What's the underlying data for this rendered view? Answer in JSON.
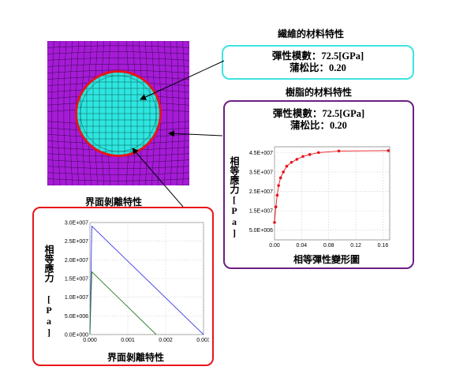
{
  "fiber": {
    "title": "繊維的材料特性",
    "modulus": "彈性模數：72.5[GPa]",
    "poisson": "蒲松比：0.20"
  },
  "resin": {
    "title": "樹脂的材料特性",
    "modulus": "彈性模數：72.5[GPa]",
    "poisson": "蒲松比：0.20"
  },
  "interface": {
    "title": "界面剝離特性"
  },
  "colors": {
    "matrix": "#a51bd6",
    "fiber": "#2ee6df",
    "interface_ring": "#e8141a",
    "fiber_box_border": "#3fe3e3",
    "resin_box_border": "#6b1f82",
    "interface_box_border": "#e8141a",
    "curve_red": "#e8141a",
    "curve_blue": "#3a3ae6",
    "curve_green": "#2a7a2a"
  },
  "chart_data": [
    {
      "type": "line",
      "xlabel": "相等彈性變形圖",
      "ylabel": "相等應力[Pa]",
      "xlim": [
        0,
        0.17
      ],
      "ylim": [
        0,
        48000000
      ],
      "x_ticks": [
        "0.00",
        "0.04",
        "0.08",
        "0.12",
        "0.16"
      ],
      "x_tick_values": [
        0,
        0.04,
        0.08,
        0.12,
        0.16
      ],
      "y_ticks": [
        "5.0E+006",
        "1.5E+007",
        "2.5E+007",
        "3.5E+007",
        "4.5E+007"
      ],
      "y_tick_values": [
        5000000,
        15000000,
        25000000,
        35000000,
        45000000
      ],
      "series": [
        {
          "x": [
            0,
            0.002,
            0.004,
            0.006,
            0.009,
            0.013,
            0.018,
            0.025,
            0.033,
            0.042,
            0.052,
            0.065,
            0.095,
            0.168
          ],
          "y": [
            9000000,
            17000000,
            23000000,
            28000000,
            32000000,
            35000000,
            38000000,
            40000000,
            41500000,
            43000000,
            44000000,
            45000000,
            45800000,
            46000000
          ]
        }
      ]
    },
    {
      "type": "line",
      "xlabel": "界面剝離特性",
      "ylabel": "相等應力 [Pa]",
      "xlim": [
        0,
        0.003
      ],
      "ylim": [
        0,
        30000000
      ],
      "x_ticks": [
        "0.000",
        "0.001",
        "0.002",
        "0.003"
      ],
      "x_tick_values": [
        0,
        0.001,
        0.002,
        0.003
      ],
      "y_ticks": [
        "0.0E+000",
        "5.0E+006",
        "1.0E+007",
        "1.5E+007",
        "2.0E+007",
        "2.5E+007",
        "3.0E+007"
      ],
      "y_tick_values": [
        0,
        5000000,
        10000000,
        15000000,
        20000000,
        25000000,
        30000000
      ],
      "series": [
        {
          "x": [
            0,
            5e-05,
            0.003
          ],
          "y": [
            0,
            29000000,
            0
          ]
        },
        {
          "x": [
            0,
            5e-05,
            0.00175
          ],
          "y": [
            0,
            16800000,
            0
          ]
        }
      ]
    }
  ]
}
